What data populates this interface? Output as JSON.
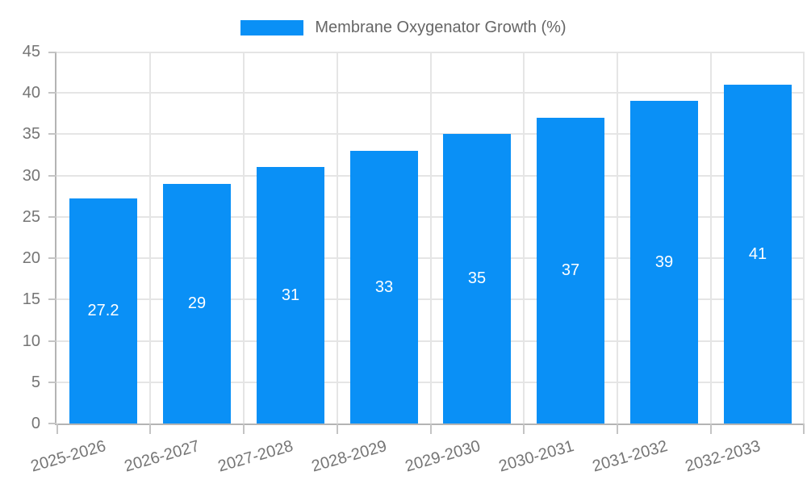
{
  "legend": {
    "label": "Membrane Oxygenator Growth (%)"
  },
  "chart_data": {
    "type": "bar",
    "title": "Membrane Oxygenator Growth (%)",
    "categories": [
      "2025-2026",
      "2026-2027",
      "2027-2028",
      "2028-2029",
      "2029-2030",
      "2030-2031",
      "2031-2032",
      "2032-2033"
    ],
    "values": [
      27.2,
      29,
      31,
      33,
      35,
      37,
      39,
      41
    ],
    "value_labels": [
      "27.2",
      "29",
      "31",
      "33",
      "35",
      "37",
      "39",
      "41"
    ],
    "xlabel": "",
    "ylabel": "",
    "ylim": [
      0,
      45
    ],
    "ytick_step": 5,
    "ytick_labels": [
      "0",
      "5",
      "10",
      "15",
      "20",
      "25",
      "30",
      "35",
      "40",
      "45"
    ],
    "grid": true,
    "legend_position": "top-center",
    "x_label_rotation_deg": -16,
    "colors": {
      "bar": "#0a90f6",
      "grid": "#e5e5e5",
      "axis": "#b4b4b4",
      "tick": "#c4c4c4",
      "tick_text": "#757575",
      "bar_label_text": "#ffffff",
      "legend_text": "#666666"
    }
  }
}
